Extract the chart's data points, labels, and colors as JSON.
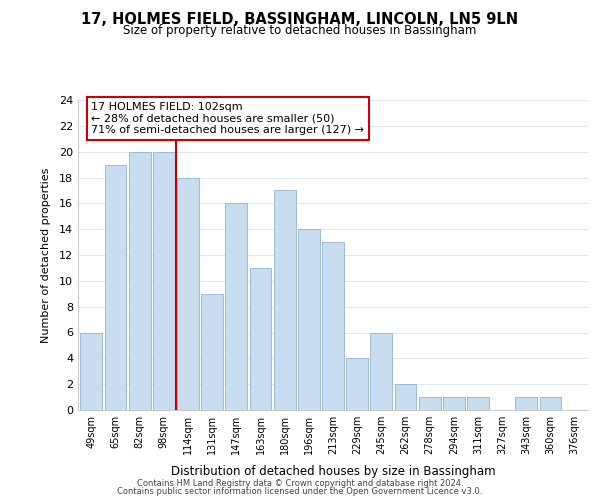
{
  "title": "17, HOLMES FIELD, BASSINGHAM, LINCOLN, LN5 9LN",
  "subtitle": "Size of property relative to detached houses in Bassingham",
  "xlabel": "Distribution of detached houses by size in Bassingham",
  "ylabel": "Number of detached properties",
  "categories": [
    "49sqm",
    "65sqm",
    "82sqm",
    "98sqm",
    "114sqm",
    "131sqm",
    "147sqm",
    "163sqm",
    "180sqm",
    "196sqm",
    "213sqm",
    "229sqm",
    "245sqm",
    "262sqm",
    "278sqm",
    "294sqm",
    "311sqm",
    "327sqm",
    "343sqm",
    "360sqm",
    "376sqm"
  ],
  "values": [
    6,
    19,
    20,
    20,
    18,
    9,
    16,
    11,
    17,
    14,
    13,
    4,
    6,
    2,
    1,
    1,
    1,
    0,
    1,
    1,
    0
  ],
  "bar_color": "#c9ddf0",
  "bar_edge_color": "#9bbcd8",
  "vline_x": 3.5,
  "vline_color": "#cc0000",
  "annotation_text": "17 HOLMES FIELD: 102sqm\n← 28% of detached houses are smaller (50)\n71% of semi-detached houses are larger (127) →",
  "annotation_box_color": "#ffffff",
  "annotation_box_edge": "#cc0000",
  "ylim": [
    0,
    24
  ],
  "yticks": [
    0,
    2,
    4,
    6,
    8,
    10,
    12,
    14,
    16,
    18,
    20,
    22,
    24
  ],
  "footer1": "Contains HM Land Registry data © Crown copyright and database right 2024.",
  "footer2": "Contains public sector information licensed under the Open Government Licence v3.0.",
  "background_color": "#ffffff",
  "grid_color": "#dde8f0"
}
